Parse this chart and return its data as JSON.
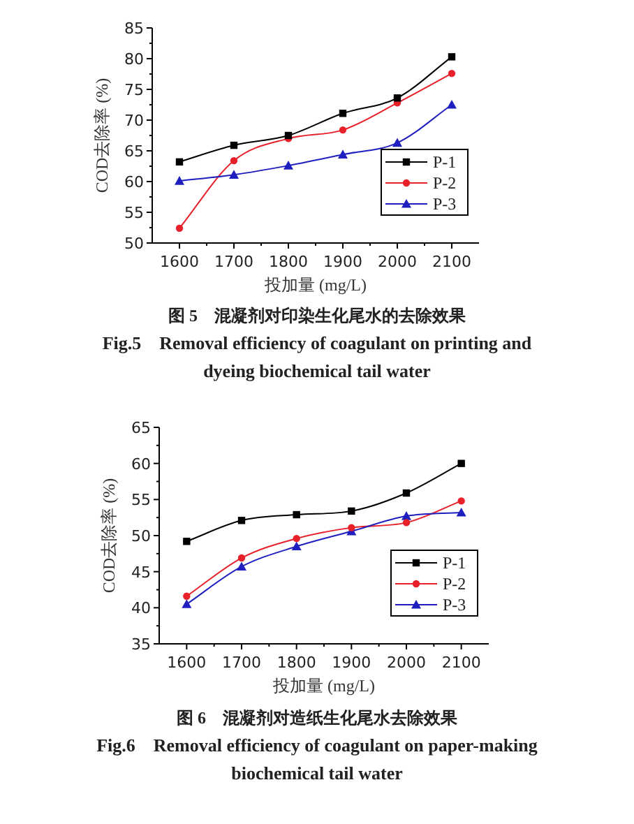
{
  "chart_data": [
    {
      "type": "line",
      "title": "图 5　混凝剂对印染生化尾水的去除效果",
      "subtitle": "Fig.5　Removal efficiency of coagulant on printing and dyeing biochemical tail water",
      "xlabel": "投加量 (mg/L)",
      "ylabel": "COD去除率 (%)",
      "x": [
        1600,
        1700,
        1800,
        1900,
        2000,
        2100
      ],
      "xlim": [
        1550,
        2150
      ],
      "xticks": [
        1600,
        1700,
        1800,
        1900,
        2000,
        2100
      ],
      "ylim": [
        50,
        85
      ],
      "yticks": [
        50,
        55,
        60,
        65,
        70,
        75,
        80,
        85
      ],
      "legend": "bottom right",
      "grid": false,
      "line_style": "solid",
      "series": [
        {
          "name": "P-1",
          "color": "#000000",
          "marker": "square",
          "values": [
            63.2,
            65.9,
            67.5,
            71.1,
            73.6,
            80.3
          ]
        },
        {
          "name": "P-2",
          "color": "#e8202a",
          "marker": "circle",
          "values": [
            52.4,
            63.4,
            67.0,
            68.4,
            72.8,
            77.6
          ]
        },
        {
          "name": "P-3",
          "color": "#1f1fbf",
          "marker": "triangle",
          "values": [
            60.1,
            61.1,
            62.6,
            64.4,
            66.3,
            72.5
          ]
        }
      ]
    },
    {
      "type": "line",
      "title": "图 6　混凝剂对造纸生化尾水去除效果",
      "subtitle": "Fig.6　Removal efficiency of coagulant on paper-making biochemical tail water",
      "xlabel": "投加量 (mg/L)",
      "ylabel": "COD去除率 (%)",
      "x": [
        1600,
        1700,
        1800,
        1900,
        2000,
        2100
      ],
      "xlim": [
        1550,
        2150
      ],
      "xticks": [
        1600,
        1700,
        1800,
        1900,
        2000,
        2100
      ],
      "ylim": [
        35,
        65
      ],
      "yticks": [
        35,
        40,
        45,
        50,
        55,
        60,
        65
      ],
      "legend": "bottom right",
      "grid": false,
      "line_style": "solid",
      "series": [
        {
          "name": "P-1",
          "color": "#000000",
          "marker": "square",
          "values": [
            49.2,
            52.1,
            52.9,
            53.4,
            55.9,
            60.0
          ]
        },
        {
          "name": "P-2",
          "color": "#e8202a",
          "marker": "circle",
          "values": [
            41.6,
            46.9,
            49.6,
            51.1,
            51.8,
            54.8
          ]
        },
        {
          "name": "P-3",
          "color": "#1f1fbf",
          "marker": "triangle",
          "values": [
            40.5,
            45.7,
            48.5,
            50.6,
            52.7,
            53.2
          ]
        }
      ]
    }
  ]
}
